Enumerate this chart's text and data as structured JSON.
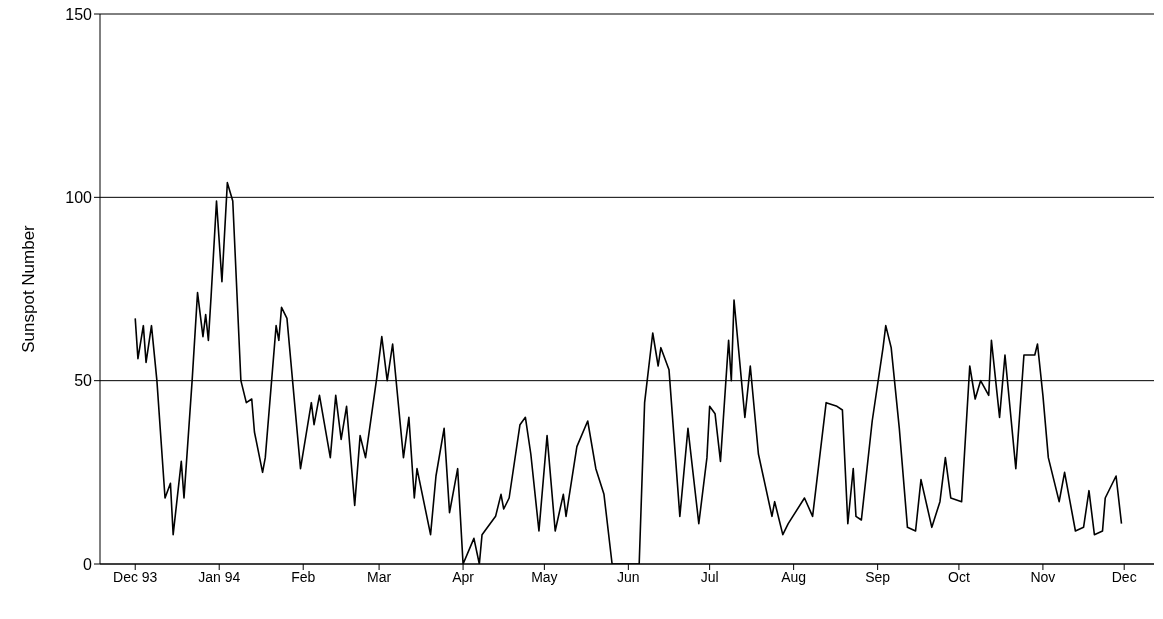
{
  "chart_data": {
    "type": "line",
    "ylabel": "Sunspot Number",
    "color": "#000000",
    "grid": "y",
    "xlim": [
      "1993-11-18",
      "1994-12-12"
    ],
    "xticks": [
      {
        "value": "1993-12-01",
        "label": "Dec 93"
      },
      {
        "value": "1994-01-01",
        "label": "Jan 94"
      },
      {
        "value": "1994-02-01",
        "label": "Feb"
      },
      {
        "value": "1994-03-01",
        "label": "Mar"
      },
      {
        "value": "1994-04-01",
        "label": "Apr"
      },
      {
        "value": "1994-05-01",
        "label": "May"
      },
      {
        "value": "1994-06-01",
        "label": "Jun"
      },
      {
        "value": "1994-07-01",
        "label": "Jul"
      },
      {
        "value": "1994-08-01",
        "label": "Aug"
      },
      {
        "value": "1994-09-01",
        "label": "Sep"
      },
      {
        "value": "1994-10-01",
        "label": "Oct"
      },
      {
        "value": "1994-11-01",
        "label": "Nov"
      },
      {
        "value": "1994-12-01",
        "label": "Dec"
      }
    ],
    "ylim": [
      0,
      150
    ],
    "yticks": [
      0,
      50,
      100,
      150
    ],
    "x": [
      "1993-12-01",
      "1993-12-02",
      "1993-12-04",
      "1993-12-05",
      "1993-12-07",
      "1993-12-09",
      "1993-12-12",
      "1993-12-14",
      "1993-12-15",
      "1993-12-18",
      "1993-12-19",
      "1993-12-22",
      "1993-12-24",
      "1993-12-26",
      "1993-12-27",
      "1993-12-28",
      "1993-12-29",
      "1993-12-31",
      "1994-01-02",
      "1994-01-04",
      "1994-01-06",
      "1994-01-09",
      "1994-01-11",
      "1994-01-13",
      "1994-01-14",
      "1994-01-17",
      "1994-01-18",
      "1994-01-22",
      "1994-01-23",
      "1994-01-24",
      "1994-01-26",
      "1994-01-31",
      "1994-02-04",
      "1994-02-05",
      "1994-02-07",
      "1994-02-11",
      "1994-02-13",
      "1994-02-15",
      "1994-02-17",
      "1994-02-20",
      "1994-02-22",
      "1994-02-24",
      "1994-02-28",
      "1994-03-02",
      "1994-03-04",
      "1994-03-06",
      "1994-03-10",
      "1994-03-12",
      "1994-03-14",
      "1994-03-15",
      "1994-03-20",
      "1994-03-22",
      "1994-03-25",
      "1994-03-27",
      "1994-03-30",
      "1994-04-01",
      "1994-04-05",
      "1994-04-07",
      "1994-04-08",
      "1994-04-13",
      "1994-04-15",
      "1994-04-16",
      "1994-04-18",
      "1994-04-22",
      "1994-04-24",
      "1994-04-26",
      "1994-04-29",
      "1994-05-02",
      "1994-05-05",
      "1994-05-08",
      "1994-05-09",
      "1994-05-13",
      "1994-05-17",
      "1994-05-20",
      "1994-05-23",
      "1994-05-26",
      "1994-06-05",
      "1994-06-07",
      "1994-06-10",
      "1994-06-12",
      "1994-06-13",
      "1994-06-16",
      "1994-06-20",
      "1994-06-23",
      "1994-06-27",
      "1994-06-30",
      "1994-07-01",
      "1994-07-03",
      "1994-07-05",
      "1994-07-08",
      "1994-07-09",
      "1994-07-10",
      "1994-07-14",
      "1994-07-16",
      "1994-07-19",
      "1994-07-24",
      "1994-07-25",
      "1994-07-28",
      "1994-07-30",
      "1994-08-05",
      "1994-08-08",
      "1994-08-13",
      "1994-08-17",
      "1994-08-19",
      "1994-08-21",
      "1994-08-23",
      "1994-08-24",
      "1994-08-26",
      "1994-08-30",
      "1994-09-03",
      "1994-09-04",
      "1994-09-06",
      "1994-09-09",
      "1994-09-12",
      "1994-09-15",
      "1994-09-17",
      "1994-09-21",
      "1994-09-24",
      "1994-09-26",
      "1994-09-28",
      "1994-10-02",
      "1994-10-05",
      "1994-10-07",
      "1994-10-09",
      "1994-10-12",
      "1994-10-13",
      "1994-10-16",
      "1994-10-18",
      "1994-10-22",
      "1994-10-25",
      "1994-10-29",
      "1994-10-30",
      "1994-11-01",
      "1994-11-03",
      "1994-11-07",
      "1994-11-09",
      "1994-11-11",
      "1994-11-13",
      "1994-11-16",
      "1994-11-18",
      "1994-11-20",
      "1994-11-23",
      "1994-11-24",
      "1994-11-28",
      "1994-11-30"
    ],
    "values": [
      67,
      56,
      65,
      55,
      65,
      50,
      18,
      22,
      8,
      28,
      18,
      50,
      74,
      62,
      68,
      61,
      73,
      99,
      77,
      104,
      99,
      50,
      44,
      45,
      36,
      25,
      29,
      65,
      61,
      70,
      67,
      26,
      44,
      38,
      46,
      29,
      46,
      34,
      43,
      16,
      35,
      29,
      50,
      62,
      50,
      60,
      29,
      40,
      18,
      26,
      8,
      24,
      37,
      14,
      26,
      0,
      7,
      0,
      8,
      13,
      19,
      15,
      18,
      38,
      40,
      30,
      9,
      35,
      9,
      19,
      13,
      32,
      39,
      26,
      19,
      0,
      0,
      44,
      63,
      54,
      59,
      53,
      13,
      37,
      11,
      29,
      43,
      41,
      28,
      61,
      50,
      72,
      40,
      54,
      30,
      13,
      17,
      8,
      11,
      18,
      13,
      44,
      43,
      42,
      11,
      26,
      13,
      12,
      39,
      59,
      65,
      59,
      37,
      10,
      9,
      23,
      10,
      17,
      29,
      18,
      17,
      54,
      45,
      50,
      46,
      61,
      40,
      57,
      26,
      57,
      57,
      60,
      46,
      29,
      17,
      25,
      17,
      9,
      10,
      20,
      8,
      9,
      18,
      24,
      11
    ]
  }
}
